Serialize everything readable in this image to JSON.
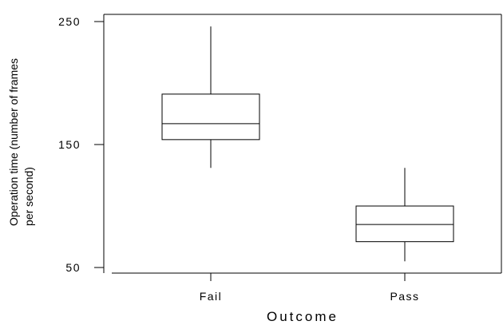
{
  "chart_data": {
    "type": "box",
    "title": "",
    "xlabel": "Outcome",
    "ylabel_lines": [
      "Operation time (number of frames",
      "per second)"
    ],
    "ylim": [
      45,
      257
    ],
    "yticks": [
      250,
      150,
      50
    ],
    "categories": [
      "Fail",
      "Pass"
    ],
    "boxes": [
      {
        "category": "Fail",
        "whisker_low": 131,
        "q1": 154,
        "median": 167,
        "q3": 191,
        "whisker_high": 246
      },
      {
        "category": "Pass",
        "whisker_low": 55,
        "q1": 71,
        "median": 85,
        "q3": 100,
        "whisker_high": 131
      }
    ],
    "grid": false
  }
}
